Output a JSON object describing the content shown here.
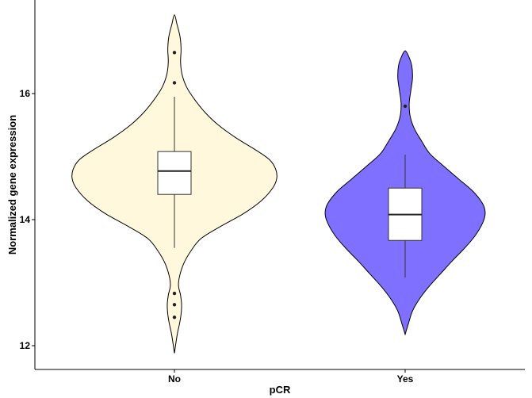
{
  "chart_data": {
    "type": "violin",
    "title": "",
    "xlabel": "pCR",
    "ylabel": "Normalized gene expression",
    "ylim": [
      11.8,
      17.5
    ],
    "yticks": [
      12,
      14,
      16
    ],
    "grid": false,
    "legend": "none",
    "categories": [
      "No",
      "Yes"
    ],
    "groups": [
      {
        "label": "No",
        "fill": "#FFF8DC",
        "box": {
          "q1": 14.4,
          "median": 14.77,
          "q3": 15.08,
          "whisker_low": 13.55,
          "whisker_high": 15.95
        },
        "outliers": [
          16.65,
          16.17,
          12.83,
          12.65,
          12.45
        ],
        "density": {
          "y": [
            11.88,
            12.05,
            12.2,
            12.35,
            12.5,
            12.65,
            12.8,
            12.95,
            13.1,
            13.3,
            13.5,
            13.7,
            13.9,
            14.1,
            14.3,
            14.5,
            14.65,
            14.8,
            14.95,
            15.1,
            15.3,
            15.5,
            15.7,
            15.9,
            16.1,
            16.3,
            16.5,
            16.7,
            16.9,
            17.1,
            17.25
          ],
          "w": [
            0.0,
            0.015,
            0.03,
            0.05,
            0.065,
            0.07,
            0.06,
            0.04,
            0.05,
            0.09,
            0.16,
            0.26,
            0.46,
            0.68,
            0.85,
            0.96,
            1.0,
            0.99,
            0.93,
            0.8,
            0.6,
            0.43,
            0.3,
            0.2,
            0.12,
            0.075,
            0.06,
            0.065,
            0.055,
            0.025,
            0.0
          ]
        }
      },
      {
        "label": "Yes",
        "fill": "#8070FF",
        "box": {
          "q1": 13.67,
          "median": 14.08,
          "q3": 14.5,
          "whisker_low": 13.08,
          "whisker_high": 15.03
        },
        "outliers": [
          15.8
        ],
        "density": {
          "y": [
            12.18,
            12.35,
            12.55,
            12.75,
            12.95,
            13.15,
            13.35,
            13.55,
            13.75,
            13.95,
            14.1,
            14.25,
            14.45,
            14.65,
            14.85,
            15.05,
            15.25,
            15.45,
            15.65,
            15.85,
            16.05,
            16.25,
            16.45,
            16.6,
            16.68
          ],
          "w": [
            0.0,
            0.04,
            0.09,
            0.18,
            0.3,
            0.44,
            0.58,
            0.73,
            0.86,
            0.95,
            0.98,
            0.95,
            0.83,
            0.65,
            0.47,
            0.3,
            0.2,
            0.11,
            0.06,
            0.05,
            0.07,
            0.09,
            0.08,
            0.04,
            0.0
          ]
        }
      }
    ]
  }
}
